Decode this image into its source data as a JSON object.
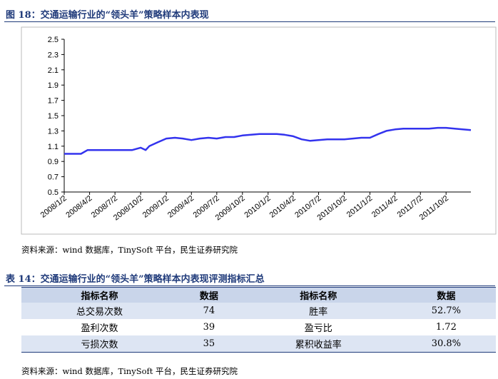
{
  "figure_title": "图 18：交通运输行业的“领头羊”策略样本内表现",
  "chart_data": {
    "type": "line",
    "color": "#3333ee",
    "x": [
      "2008/1/2",
      "2008/3/2",
      "2008/3/26",
      "2008/5/2",
      "2008/7/2",
      "2008/9/2",
      "2008/10/2",
      "2008/10/20",
      "2008/11/2",
      "2008/12/2",
      "2009/1/2",
      "2009/2/2",
      "2009/3/2",
      "2009/4/2",
      "2009/5/2",
      "2009/6/2",
      "2009/7/2",
      "2009/8/2",
      "2009/9/2",
      "2009/10/2",
      "2009/11/2",
      "2009/12/2",
      "2010/1/2",
      "2010/2/2",
      "2010/3/2",
      "2010/4/2",
      "2010/5/2",
      "2010/6/2",
      "2010/7/2",
      "2010/8/2",
      "2010/9/2",
      "2010/10/2",
      "2010/11/2",
      "2010/12/2",
      "2011/1/2",
      "2011/2/2",
      "2011/3/2",
      "2011/4/2",
      "2011/5/2",
      "2011/6/2",
      "2011/7/2",
      "2011/8/2",
      "2011/9/2",
      "2011/10/2",
      "2011/11/2",
      "2011/12/30"
    ],
    "values": [
      1.0,
      1.0,
      1.05,
      1.05,
      1.05,
      1.05,
      1.08,
      1.05,
      1.1,
      1.15,
      1.2,
      1.21,
      1.2,
      1.18,
      1.2,
      1.21,
      1.2,
      1.22,
      1.22,
      1.24,
      1.25,
      1.26,
      1.26,
      1.26,
      1.25,
      1.23,
      1.19,
      1.17,
      1.18,
      1.19,
      1.19,
      1.19,
      1.2,
      1.21,
      1.21,
      1.26,
      1.3,
      1.32,
      1.33,
      1.33,
      1.33,
      1.33,
      1.34,
      1.34,
      1.33,
      1.31
    ],
    "xlim": [
      "2008/1/2",
      "2011/12/30"
    ],
    "xticks": [
      "2008/1/2",
      "2008/4/2",
      "2008/7/2",
      "2008/10/2",
      "2009/1/2",
      "2009/4/2",
      "2009/7/2",
      "2009/10/2",
      "2010/1/2",
      "2010/4/2",
      "2010/7/2",
      "2010/10/2",
      "2011/1/2",
      "2011/4/2",
      "2011/7/2",
      "2011/10/2"
    ],
    "ylim": [
      0.5,
      2.5
    ],
    "yticks": [
      0.5,
      0.7,
      0.9,
      1.1,
      1.3,
      1.5,
      1.7,
      1.9,
      2.1,
      2.3,
      2.5
    ]
  },
  "chart_source": "资料来源：wind 数据库，TinySoft 平台，民生证券研究院",
  "table": {
    "title": "表 14：交通运输行业的“领头羊”策略样本内表现评测指标汇总",
    "header": [
      "指标名称",
      "数据",
      "指标名称",
      "数据"
    ],
    "rows": [
      [
        "总交易次数",
        "74",
        "胜率",
        "52.7%"
      ],
      [
        "盈利次数",
        "39",
        "盈亏比",
        "1.72"
      ],
      [
        "亏损次数",
        "35",
        "累积收益率",
        "30.8%"
      ]
    ]
  },
  "table_source": "资料来源：wind 数据库，TinySoft 平台，民生证券研究院"
}
